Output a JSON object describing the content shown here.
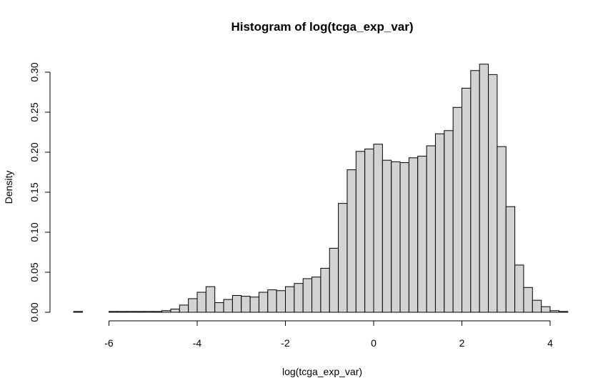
{
  "chart_data": {
    "type": "bar",
    "title": "Histogram of log(tcga_exp_var)",
    "xlabel": "log(tcga_exp_var)",
    "ylabel": "Density",
    "bin_width": 0.2,
    "bin_start": -6.8,
    "xlim": [
      -6.8,
      4.4
    ],
    "ylim": [
      0,
      0.3
    ],
    "x_ticks": [
      -6,
      -4,
      -2,
      0,
      2,
      4
    ],
    "y_ticks": [
      0.0,
      0.05,
      0.1,
      0.15,
      0.2,
      0.25,
      0.3
    ],
    "x_tick_labels": [
      "-6",
      "-4",
      "-2",
      "0",
      "2",
      "4"
    ],
    "y_tick_labels": [
      "0.00",
      "0.05",
      "0.10",
      "0.15",
      "0.20",
      "0.25",
      "0.30"
    ],
    "values": [
      0.001,
      0.0,
      0.0,
      0.0,
      0.001,
      0.001,
      0.001,
      0.001,
      0.001,
      0.001,
      0.002,
      0.004,
      0.009,
      0.017,
      0.025,
      0.032,
      0.012,
      0.016,
      0.021,
      0.02,
      0.019,
      0.025,
      0.028,
      0.027,
      0.032,
      0.036,
      0.042,
      0.044,
      0.055,
      0.08,
      0.136,
      0.178,
      0.201,
      0.204,
      0.21,
      0.19,
      0.188,
      0.187,
      0.193,
      0.195,
      0.208,
      0.223,
      0.227,
      0.256,
      0.28,
      0.302,
      0.31,
      0.297,
      0.207,
      0.132,
      0.059,
      0.031,
      0.015,
      0.007,
      0.002,
      0.001
    ]
  }
}
